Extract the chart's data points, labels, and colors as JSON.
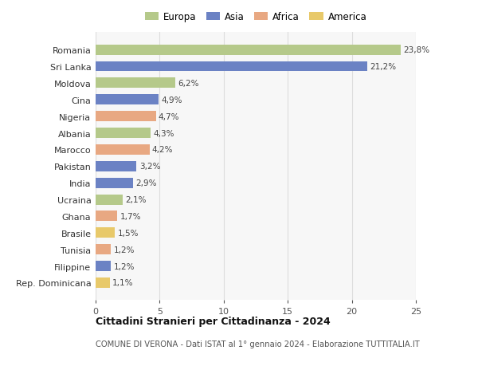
{
  "countries": [
    "Rep. Dominicana",
    "Filippine",
    "Tunisia",
    "Brasile",
    "Ghana",
    "Ucraina",
    "India",
    "Pakistan",
    "Marocco",
    "Albania",
    "Nigeria",
    "Cina",
    "Moldova",
    "Sri Lanka",
    "Romania"
  ],
  "values": [
    1.1,
    1.2,
    1.2,
    1.5,
    1.7,
    2.1,
    2.9,
    3.2,
    4.2,
    4.3,
    4.7,
    4.9,
    6.2,
    21.2,
    23.8
  ],
  "labels": [
    "1,1%",
    "1,2%",
    "1,2%",
    "1,5%",
    "1,7%",
    "2,1%",
    "2,9%",
    "3,2%",
    "4,2%",
    "4,3%",
    "4,7%",
    "4,9%",
    "6,2%",
    "21,2%",
    "23,8%"
  ],
  "colors": [
    "#e8c96a",
    "#6b82c4",
    "#e8a882",
    "#e8c96a",
    "#e8a882",
    "#b5c98a",
    "#6b82c4",
    "#6b82c4",
    "#e8a882",
    "#b5c98a",
    "#e8a882",
    "#6b82c4",
    "#b5c98a",
    "#6b82c4",
    "#b5c98a"
  ],
  "legend_labels": [
    "Europa",
    "Asia",
    "Africa",
    "America"
  ],
  "legend_colors": [
    "#b5c98a",
    "#6b82c4",
    "#e8a882",
    "#e8c96a"
  ],
  "title": "Cittadini Stranieri per Cittadinanza - 2024",
  "subtitle": "COMUNE DI VERONA - Dati ISTAT al 1° gennaio 2024 - Elaborazione TUTTITALIA.IT",
  "xlim": [
    0,
    25
  ],
  "xticks": [
    0,
    5,
    10,
    15,
    20,
    25
  ],
  "background_color": "#ffffff",
  "bar_background": "#f7f7f7",
  "grid_color": "#dddddd"
}
